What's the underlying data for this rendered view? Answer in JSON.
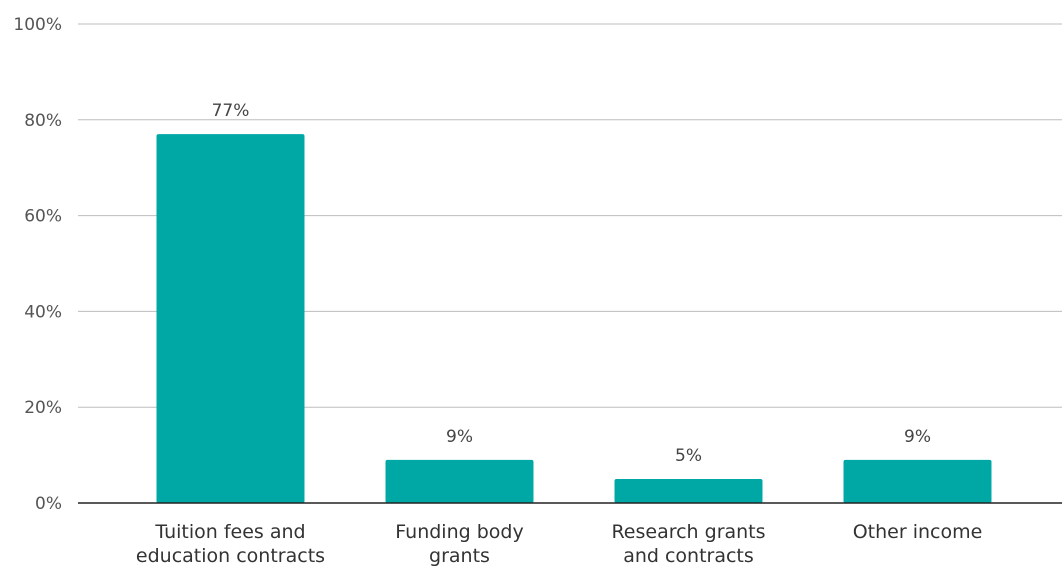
{
  "chart_data": {
    "type": "bar",
    "categories": [
      [
        "Tuition fees and",
        "education contracts"
      ],
      [
        "Funding body",
        "grants"
      ],
      [
        "Research grants",
        "and contracts"
      ],
      [
        "Other income"
      ]
    ],
    "values": [
      77,
      9,
      5,
      9
    ],
    "data_labels": [
      "77%",
      "9%",
      "5%",
      "9%"
    ],
    "yticks": [
      0,
      20,
      40,
      60,
      80,
      100
    ],
    "ytick_labels": [
      "0%",
      "20%",
      "40%",
      "60%",
      "80%",
      "100%"
    ],
    "ylim": [
      0,
      100
    ],
    "grid": true,
    "bar_color": "#00a8a5"
  }
}
